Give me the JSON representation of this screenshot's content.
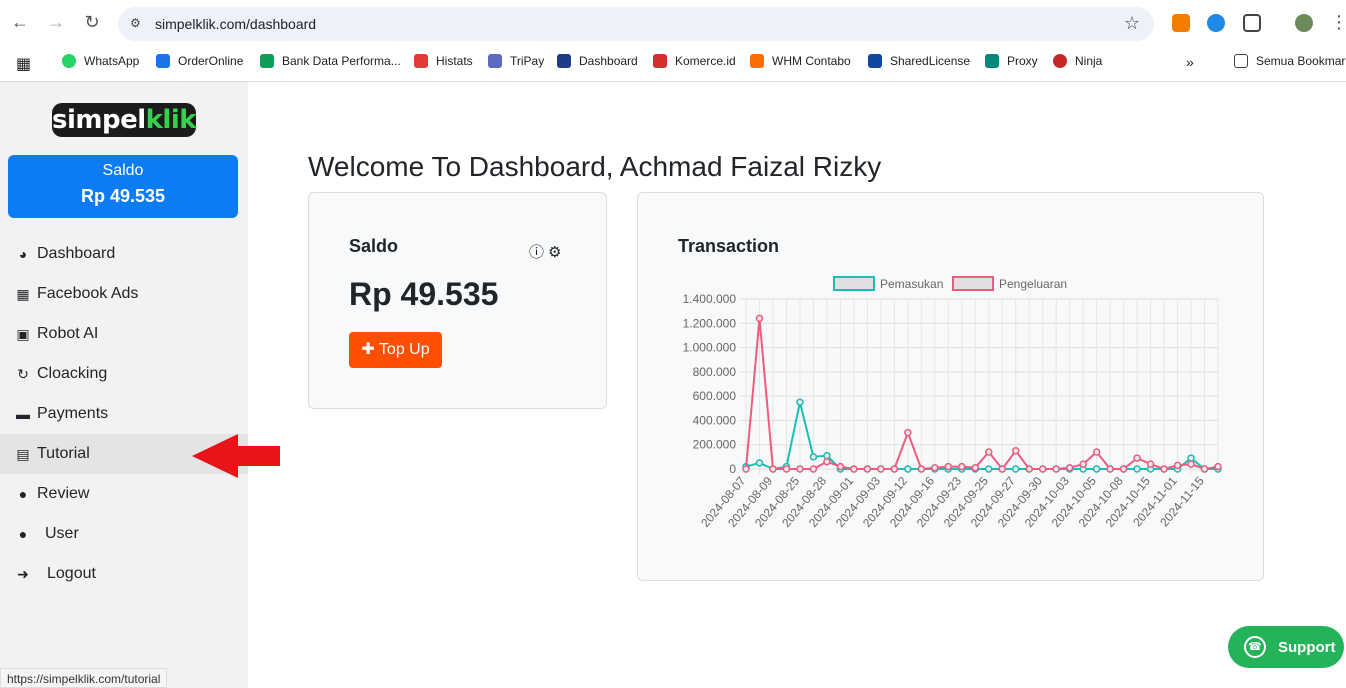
{
  "browser": {
    "url": "simpelklik.com/dashboard",
    "bookmarks": [
      "WhatsApp",
      "OrderOnline",
      "Bank Data Performa...",
      "Histats",
      "TriPay",
      "Dashboard",
      "Komerce.id",
      "WHM Contabo",
      "SharedLicense",
      "Proxy",
      "Ninja"
    ],
    "bookmark_colors": [
      "#25d366",
      "#1a73e8",
      "#0f9d58",
      "#e53935",
      "#5c6bc0",
      "#1e3a8a",
      "#d32f2f",
      "#ff6d00",
      "#0d47a1",
      "#00897b",
      "#c62828"
    ],
    "all_bookmarks": "Semua Bookmark",
    "status_url": "https://simpelklik.com/tutorial"
  },
  "sidebar": {
    "logo_a": "simpel",
    "logo_b": "klik",
    "saldo_label": "Saldo",
    "saldo_value": "Rp 49.535",
    "items": [
      {
        "label": "Dashboard",
        "icon": "gauge-icon"
      },
      {
        "label": "Facebook Ads",
        "icon": "ad-icon"
      },
      {
        "label": "Robot AI",
        "icon": "robot-icon"
      },
      {
        "label": "Cloacking",
        "icon": "sync-icon"
      },
      {
        "label": "Payments",
        "icon": "money-icon"
      },
      {
        "label": "Tutorial",
        "icon": "book-icon"
      },
      {
        "label": "Review",
        "icon": "comment-icon"
      },
      {
        "label": "User",
        "icon": "user-icon"
      },
      {
        "label": "Logout",
        "icon": "logout-icon"
      }
    ]
  },
  "main": {
    "welcome": "Welcome To Dashboard, Achmad Faizal Rizky",
    "saldo_card": {
      "title": "Saldo",
      "amount": "Rp 49.535",
      "topup": "Top Up"
    },
    "transaction_title": "Transaction"
  },
  "support_label": "Support",
  "chart_data": {
    "type": "line",
    "x": [
      "2024-08-07",
      "2024-08-08",
      "2024-08-09",
      "2024-08-10",
      "2024-08-25",
      "2024-08-26",
      "2024-08-28",
      "2024-08-29",
      "2024-09-01",
      "2024-09-02",
      "2024-09-03",
      "2024-09-05",
      "2024-09-12",
      "2024-09-13",
      "2024-09-16",
      "2024-09-17",
      "2024-09-23",
      "2024-09-24",
      "2024-09-25",
      "2024-09-26",
      "2024-09-27",
      "2024-09-28",
      "2024-09-30",
      "2024-10-01",
      "2024-10-03",
      "2024-10-04",
      "2024-10-05",
      "2024-10-07",
      "2024-10-08",
      "2024-10-09",
      "2024-10-15",
      "2024-10-16",
      "2024-11-01",
      "2024-11-02",
      "2024-11-15",
      "2024-11-16"
    ],
    "tick_labels": [
      "2024-08-07",
      "2024-08-09",
      "2024-08-25",
      "2024-08-28",
      "2024-09-01",
      "2024-09-03",
      "2024-09-12",
      "2024-09-16",
      "2024-09-23",
      "2024-09-25",
      "2024-09-27",
      "2024-09-30",
      "2024-10-03",
      "2024-10-05",
      "2024-10-08",
      "2024-10-15",
      "2024-11-01",
      "2024-11-15"
    ],
    "series": [
      {
        "name": "Pemasukan",
        "color": "#17bfb4",
        "values": [
          20000,
          50000,
          0,
          20000,
          550000,
          100000,
          110000,
          0,
          0,
          0,
          0,
          0,
          0,
          0,
          0,
          0,
          0,
          0,
          0,
          0,
          0,
          0,
          0,
          0,
          0,
          0,
          0,
          0,
          0,
          0,
          0,
          0,
          0,
          90000,
          0,
          0
        ]
      },
      {
        "name": "Pengeluaran",
        "color": "#ef5b7f",
        "values": [
          0,
          1240000,
          0,
          0,
          0,
          0,
          60000,
          20000,
          0,
          0,
          0,
          0,
          300000,
          0,
          10000,
          20000,
          20000,
          10000,
          140000,
          0,
          150000,
          0,
          0,
          0,
          10000,
          40000,
          140000,
          0,
          0,
          90000,
          40000,
          0,
          30000,
          40000,
          0,
          20000
        ]
      }
    ],
    "ylim": [
      0,
      1400000
    ],
    "y_ticks": [
      "0",
      "200.000",
      "400.000",
      "600.000",
      "800.000",
      "1.000.000",
      "1.200.000",
      "1.400.000"
    ],
    "legend": "top"
  }
}
